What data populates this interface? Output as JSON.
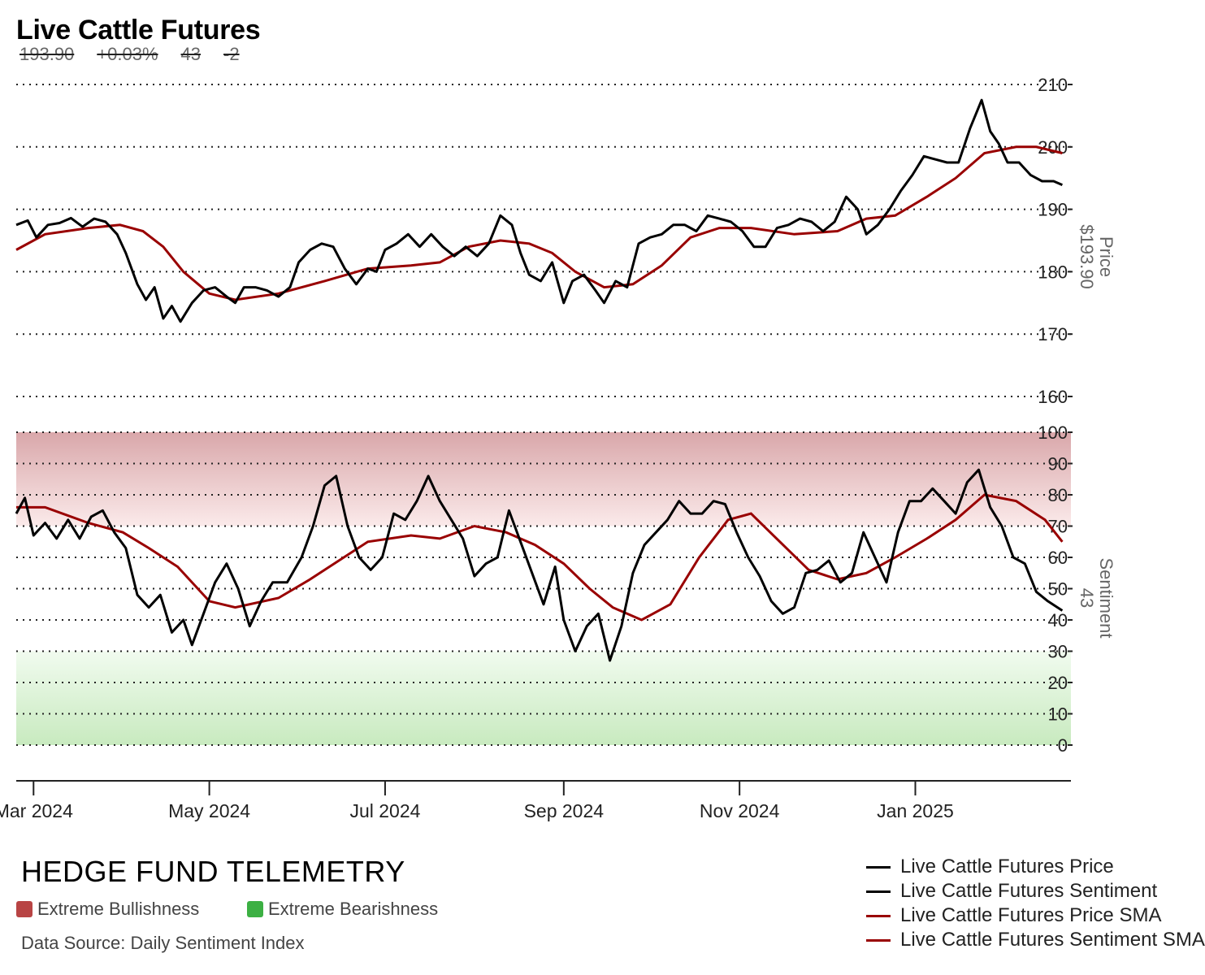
{
  "header": {
    "title": "Live Cattle Futures",
    "price": "193.90",
    "change_pct": "+0.03%",
    "sentiment": "43",
    "sentiment_change": "-2"
  },
  "footer": {
    "brand": "HEDGE FUND TELEMETRY",
    "bull_label": "Extreme Bullishness",
    "bear_label": "Extreme Bearishness",
    "source": "Data Source: Daily Sentiment Index",
    "bull_color": "#b84444",
    "bear_color": "#3cb043"
  },
  "legend": [
    {
      "label": "Live Cattle Futures Price",
      "color": "#000000"
    },
    {
      "label": "Live Cattle Futures Sentiment",
      "color": "#000000"
    },
    {
      "label": "Live Cattle Futures Price SMA",
      "color": "#990000"
    },
    {
      "label": "Live Cattle Futures Sentiment SMA",
      "color": "#990000"
    }
  ],
  "axes": {
    "price_label": "Price",
    "price_value": "$193.90",
    "sentiment_label": "Sentiment",
    "sentiment_value": "43"
  },
  "chart_data": {
    "type": "line",
    "x_ticks": [
      "Mar 2024",
      "May 2024",
      "Jul 2024",
      "Sep 2024",
      "Nov 2024",
      "Jan 2025"
    ],
    "x_tick_dates": [
      "2024-03-01",
      "2024-05-01",
      "2024-07-01",
      "2024-09-01",
      "2024-11-01",
      "2025-01-01"
    ],
    "x_range": [
      "2024-02-24",
      "2025-02-24"
    ],
    "price_axis": {
      "ticks": [
        160,
        170,
        180,
        190,
        200,
        210
      ],
      "ylim": [
        160,
        210
      ],
      "grid": true
    },
    "sentiment_axis": {
      "ticks": [
        0,
        10,
        20,
        30,
        40,
        50,
        60,
        70,
        80,
        90,
        100
      ],
      "ylim": [
        0,
        100
      ],
      "grid": true,
      "extreme_bullish_zone": [
        70,
        100
      ],
      "extreme_bearish_zone": [
        0,
        30
      ]
    },
    "price": [
      [
        "2024-02-24",
        187.5
      ],
      [
        "2024-02-28",
        188.2
      ],
      [
        "2024-03-02",
        185.5
      ],
      [
        "2024-03-06",
        187.5
      ],
      [
        "2024-03-10",
        187.8
      ],
      [
        "2024-03-14",
        188.6
      ],
      [
        "2024-03-18",
        187.2
      ],
      [
        "2024-03-22",
        188.5
      ],
      [
        "2024-03-26",
        188.0
      ],
      [
        "2024-03-30",
        186.0
      ],
      [
        "2024-04-02",
        183.0
      ],
      [
        "2024-04-06",
        178.0
      ],
      [
        "2024-04-09",
        175.5
      ],
      [
        "2024-04-12",
        177.5
      ],
      [
        "2024-04-15",
        172.5
      ],
      [
        "2024-04-18",
        174.5
      ],
      [
        "2024-04-21",
        172.0
      ],
      [
        "2024-04-25",
        175.0
      ],
      [
        "2024-04-29",
        177.0
      ],
      [
        "2024-05-03",
        177.5
      ],
      [
        "2024-05-07",
        176.0
      ],
      [
        "2024-05-10",
        175.0
      ],
      [
        "2024-05-13",
        177.5
      ],
      [
        "2024-05-17",
        177.5
      ],
      [
        "2024-05-21",
        177.0
      ],
      [
        "2024-05-25",
        176.0
      ],
      [
        "2024-05-29",
        177.5
      ],
      [
        "2024-06-01",
        181.5
      ],
      [
        "2024-06-05",
        183.5
      ],
      [
        "2024-06-09",
        184.5
      ],
      [
        "2024-06-13",
        184.0
      ],
      [
        "2024-06-17",
        180.5
      ],
      [
        "2024-06-21",
        178.0
      ],
      [
        "2024-06-25",
        180.5
      ],
      [
        "2024-06-28",
        180.0
      ],
      [
        "2024-07-01",
        183.5
      ],
      [
        "2024-07-05",
        184.5
      ],
      [
        "2024-07-09",
        186.0
      ],
      [
        "2024-07-13",
        184.0
      ],
      [
        "2024-07-17",
        186.0
      ],
      [
        "2024-07-21",
        184.0
      ],
      [
        "2024-07-25",
        182.5
      ],
      [
        "2024-07-29",
        184.0
      ],
      [
        "2024-08-02",
        182.5
      ],
      [
        "2024-08-06",
        184.5
      ],
      [
        "2024-08-10",
        189.0
      ],
      [
        "2024-08-14",
        187.5
      ],
      [
        "2024-08-17",
        183.0
      ],
      [
        "2024-08-20",
        179.5
      ],
      [
        "2024-08-24",
        178.5
      ],
      [
        "2024-08-28",
        181.5
      ],
      [
        "2024-09-01",
        175.0
      ],
      [
        "2024-09-04",
        178.5
      ],
      [
        "2024-09-08",
        179.5
      ],
      [
        "2024-09-12",
        177.0
      ],
      [
        "2024-09-15",
        175.0
      ],
      [
        "2024-09-19",
        178.5
      ],
      [
        "2024-09-23",
        177.5
      ],
      [
        "2024-09-27",
        184.5
      ],
      [
        "2024-10-01",
        185.5
      ],
      [
        "2024-10-05",
        186.0
      ],
      [
        "2024-10-09",
        187.5
      ],
      [
        "2024-10-13",
        187.5
      ],
      [
        "2024-10-17",
        186.5
      ],
      [
        "2024-10-21",
        189.0
      ],
      [
        "2024-10-25",
        188.5
      ],
      [
        "2024-10-29",
        188.0
      ],
      [
        "2024-11-02",
        186.5
      ],
      [
        "2024-11-06",
        184.0
      ],
      [
        "2024-11-10",
        184.0
      ],
      [
        "2024-11-14",
        187.0
      ],
      [
        "2024-11-18",
        187.5
      ],
      [
        "2024-11-22",
        188.5
      ],
      [
        "2024-11-26",
        188.0
      ],
      [
        "2024-11-30",
        186.5
      ],
      [
        "2024-12-04",
        188.0
      ],
      [
        "2024-12-08",
        192.0
      ],
      [
        "2024-12-12",
        190.0
      ],
      [
        "2024-12-15",
        186.0
      ],
      [
        "2024-12-19",
        187.5
      ],
      [
        "2024-12-23",
        190.0
      ],
      [
        "2024-12-27",
        193.0
      ],
      [
        "2024-12-31",
        195.5
      ],
      [
        "2025-01-04",
        198.5
      ],
      [
        "2025-01-08",
        198.0
      ],
      [
        "2025-01-12",
        197.5
      ],
      [
        "2025-01-16",
        197.5
      ],
      [
        "2025-01-20",
        203.0
      ],
      [
        "2025-01-24",
        207.5
      ],
      [
        "2025-01-27",
        202.5
      ],
      [
        "2025-01-30",
        200.5
      ],
      [
        "2025-02-02",
        197.5
      ],
      [
        "2025-02-06",
        197.5
      ],
      [
        "2025-02-10",
        195.5
      ],
      [
        "2025-02-14",
        194.5
      ],
      [
        "2025-02-18",
        194.5
      ],
      [
        "2025-02-21",
        193.9
      ]
    ],
    "price_sma": [
      [
        "2024-02-24",
        183.5
      ],
      [
        "2024-03-05",
        186.0
      ],
      [
        "2024-03-20",
        187.0
      ],
      [
        "2024-03-31",
        187.5
      ],
      [
        "2024-04-08",
        186.5
      ],
      [
        "2024-04-15",
        184.0
      ],
      [
        "2024-04-22",
        180.0
      ],
      [
        "2024-05-01",
        176.5
      ],
      [
        "2024-05-10",
        175.5
      ],
      [
        "2024-05-25",
        176.5
      ],
      [
        "2024-06-10",
        178.5
      ],
      [
        "2024-06-25",
        180.5
      ],
      [
        "2024-07-10",
        181.0
      ],
      [
        "2024-07-20",
        181.5
      ],
      [
        "2024-07-30",
        184.0
      ],
      [
        "2024-08-10",
        185.0
      ],
      [
        "2024-08-20",
        184.5
      ],
      [
        "2024-08-28",
        183.0
      ],
      [
        "2024-09-05",
        180.0
      ],
      [
        "2024-09-15",
        177.5
      ],
      [
        "2024-09-25",
        178.0
      ],
      [
        "2024-10-05",
        181.0
      ],
      [
        "2024-10-15",
        185.5
      ],
      [
        "2024-10-25",
        187.0
      ],
      [
        "2024-11-05",
        187.0
      ],
      [
        "2024-11-20",
        186.0
      ],
      [
        "2024-12-05",
        186.5
      ],
      [
        "2024-12-15",
        188.5
      ],
      [
        "2024-12-25",
        189.0
      ],
      [
        "2025-01-05",
        192.0
      ],
      [
        "2025-01-15",
        195.0
      ],
      [
        "2025-01-25",
        199.0
      ],
      [
        "2025-02-05",
        200.0
      ],
      [
        "2025-02-12",
        200.0
      ],
      [
        "2025-02-21",
        199.0
      ]
    ],
    "sentiment": [
      [
        "2024-02-24",
        74
      ],
      [
        "2024-02-27",
        79
      ],
      [
        "2024-03-01",
        67
      ],
      [
        "2024-03-05",
        71
      ],
      [
        "2024-03-09",
        66
      ],
      [
        "2024-03-13",
        72
      ],
      [
        "2024-03-17",
        66
      ],
      [
        "2024-03-21",
        73
      ],
      [
        "2024-03-25",
        75
      ],
      [
        "2024-03-29",
        68
      ],
      [
        "2024-04-02",
        63
      ],
      [
        "2024-04-06",
        48
      ],
      [
        "2024-04-10",
        44
      ],
      [
        "2024-04-14",
        48
      ],
      [
        "2024-04-18",
        36
      ],
      [
        "2024-04-22",
        40
      ],
      [
        "2024-04-25",
        32
      ],
      [
        "2024-04-29",
        42
      ],
      [
        "2024-05-03",
        52
      ],
      [
        "2024-05-07",
        58
      ],
      [
        "2024-05-11",
        50
      ],
      [
        "2024-05-15",
        38
      ],
      [
        "2024-05-19",
        46
      ],
      [
        "2024-05-23",
        52
      ],
      [
        "2024-05-28",
        52
      ],
      [
        "2024-06-02",
        60
      ],
      [
        "2024-06-06",
        70
      ],
      [
        "2024-06-10",
        83
      ],
      [
        "2024-06-14",
        86
      ],
      [
        "2024-06-18",
        70
      ],
      [
        "2024-06-22",
        60
      ],
      [
        "2024-06-26",
        56
      ],
      [
        "2024-06-30",
        60
      ],
      [
        "2024-07-04",
        74
      ],
      [
        "2024-07-08",
        72
      ],
      [
        "2024-07-12",
        78
      ],
      [
        "2024-07-16",
        86
      ],
      [
        "2024-07-20",
        78
      ],
      [
        "2024-07-24",
        72
      ],
      [
        "2024-07-28",
        66
      ],
      [
        "2024-08-01",
        54
      ],
      [
        "2024-08-05",
        58
      ],
      [
        "2024-08-09",
        60
      ],
      [
        "2024-08-13",
        75
      ],
      [
        "2024-08-17",
        65
      ],
      [
        "2024-08-21",
        55
      ],
      [
        "2024-08-25",
        45
      ],
      [
        "2024-08-29",
        57
      ],
      [
        "2024-09-01",
        40
      ],
      [
        "2024-09-05",
        30
      ],
      [
        "2024-09-09",
        38
      ],
      [
        "2024-09-13",
        42
      ],
      [
        "2024-09-17",
        27
      ],
      [
        "2024-09-21",
        38
      ],
      [
        "2024-09-25",
        55
      ],
      [
        "2024-09-29",
        64
      ],
      [
        "2024-10-03",
        68
      ],
      [
        "2024-10-07",
        72
      ],
      [
        "2024-10-11",
        78
      ],
      [
        "2024-10-15",
        74
      ],
      [
        "2024-10-19",
        74
      ],
      [
        "2024-10-23",
        78
      ],
      [
        "2024-10-27",
        77
      ],
      [
        "2024-10-31",
        68
      ],
      [
        "2024-11-04",
        60
      ],
      [
        "2024-11-08",
        54
      ],
      [
        "2024-11-12",
        46
      ],
      [
        "2024-11-16",
        42
      ],
      [
        "2024-11-20",
        44
      ],
      [
        "2024-11-24",
        55
      ],
      [
        "2024-11-28",
        56
      ],
      [
        "2024-12-02",
        59
      ],
      [
        "2024-12-06",
        52
      ],
      [
        "2024-12-10",
        55
      ],
      [
        "2024-12-14",
        68
      ],
      [
        "2024-12-18",
        60
      ],
      [
        "2024-12-22",
        52
      ],
      [
        "2024-12-26",
        68
      ],
      [
        "2024-12-30",
        78
      ],
      [
        "2025-01-03",
        78
      ],
      [
        "2025-01-07",
        82
      ],
      [
        "2025-01-11",
        78
      ],
      [
        "2025-01-15",
        74
      ],
      [
        "2025-01-19",
        84
      ],
      [
        "2025-01-23",
        88
      ],
      [
        "2025-01-27",
        76
      ],
      [
        "2025-01-31",
        70
      ],
      [
        "2025-02-04",
        60
      ],
      [
        "2025-02-08",
        58
      ],
      [
        "2025-02-12",
        49
      ],
      [
        "2025-02-16",
        46
      ],
      [
        "2025-02-21",
        43
      ]
    ],
    "sentiment_sma": [
      [
        "2024-02-24",
        76
      ],
      [
        "2024-03-05",
        76
      ],
      [
        "2024-03-20",
        71
      ],
      [
        "2024-04-01",
        68
      ],
      [
        "2024-04-10",
        63
      ],
      [
        "2024-04-20",
        57
      ],
      [
        "2024-05-01",
        46
      ],
      [
        "2024-05-10",
        44
      ],
      [
        "2024-05-25",
        47
      ],
      [
        "2024-06-05",
        53
      ],
      [
        "2024-06-15",
        59
      ],
      [
        "2024-06-25",
        65
      ],
      [
        "2024-07-10",
        67
      ],
      [
        "2024-07-20",
        66
      ],
      [
        "2024-08-01",
        70
      ],
      [
        "2024-08-12",
        68
      ],
      [
        "2024-08-22",
        64
      ],
      [
        "2024-09-01",
        58
      ],
      [
        "2024-09-10",
        50
      ],
      [
        "2024-09-18",
        44
      ],
      [
        "2024-09-28",
        40
      ],
      [
        "2024-10-08",
        45
      ],
      [
        "2024-10-18",
        60
      ],
      [
        "2024-10-28",
        72
      ],
      [
        "2024-11-05",
        74
      ],
      [
        "2024-11-15",
        65
      ],
      [
        "2024-11-25",
        56
      ],
      [
        "2024-12-05",
        53
      ],
      [
        "2024-12-15",
        55
      ],
      [
        "2024-12-25",
        60
      ],
      [
        "2025-01-05",
        66
      ],
      [
        "2025-01-15",
        72
      ],
      [
        "2025-01-25",
        80
      ],
      [
        "2025-02-05",
        78
      ],
      [
        "2025-02-15",
        72
      ],
      [
        "2025-02-21",
        65
      ]
    ]
  }
}
